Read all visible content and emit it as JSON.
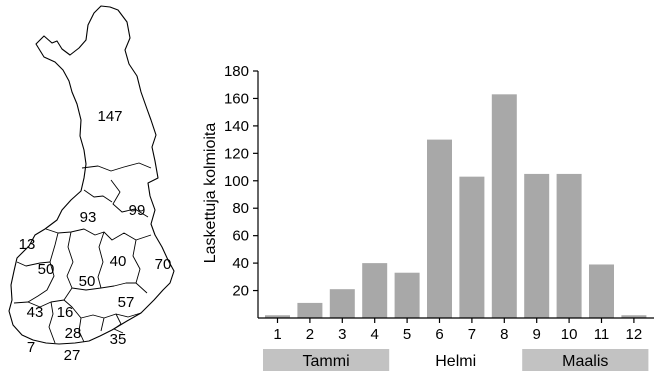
{
  "map": {
    "region_values": [
      "147",
      "93",
      "99",
      "13",
      "50",
      "50",
      "40",
      "70",
      "43",
      "16",
      "57",
      "28",
      "7",
      "27",
      "35"
    ]
  },
  "chart_data": {
    "type": "bar",
    "categories": [
      "1",
      "2",
      "3",
      "4",
      "5",
      "6",
      "7",
      "8",
      "9",
      "10",
      "11",
      "12"
    ],
    "values": [
      2,
      11,
      21,
      40,
      33,
      130,
      103,
      163,
      105,
      105,
      39,
      2
    ],
    "ylabel": "Laskettuja kolmioita",
    "ylim": [
      0,
      180
    ],
    "yticks": [
      20,
      40,
      60,
      80,
      100,
      120,
      140,
      160,
      180
    ],
    "bar_color": "#a8a8a8",
    "grid": false,
    "periods": [
      {
        "label": "Tammi",
        "from": "1",
        "to": "4",
        "shaded": true
      },
      {
        "label": "Helmi",
        "from": "5",
        "to": "8",
        "shaded": false
      },
      {
        "label": "Maalis",
        "from": "9",
        "to": "12",
        "shaded": true
      }
    ]
  }
}
